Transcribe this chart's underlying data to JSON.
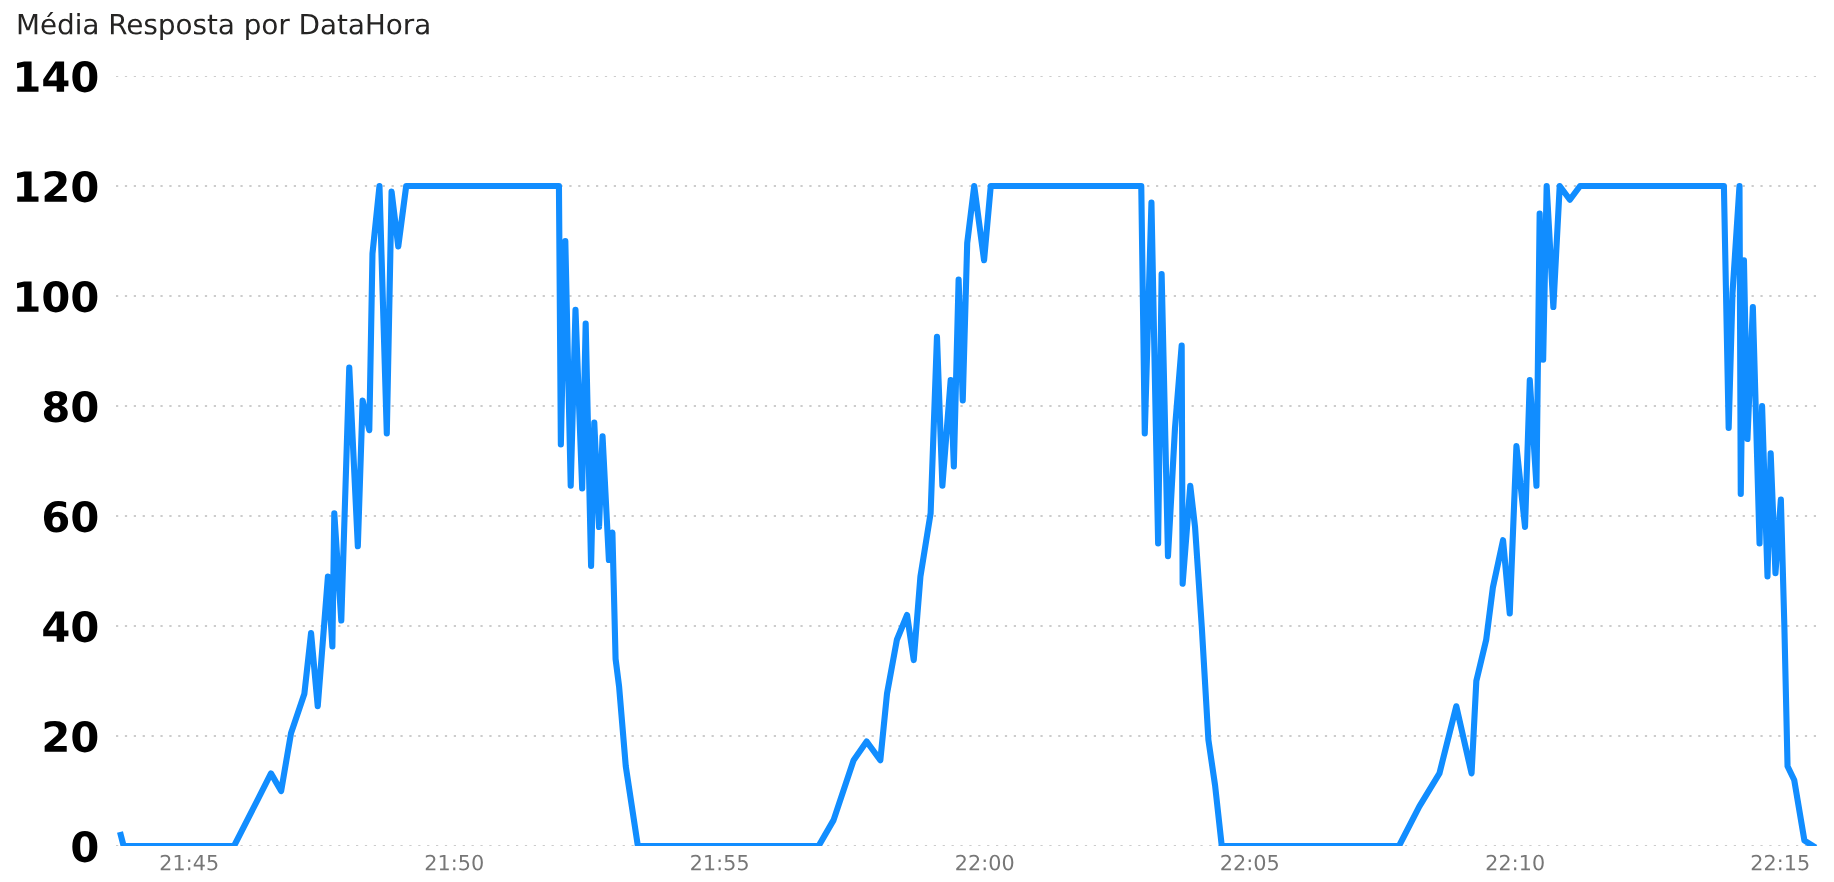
{
  "chart_data": {
    "type": "line",
    "title": "Média Resposta por DataHora",
    "x": [
      21.7285,
      21.7294,
      21.7641,
      21.7715,
      21.7757,
      21.7789,
      21.782,
      21.7862,
      21.7883,
      21.7904,
      21.7936,
      21.795,
      21.7956,
      21.7978,
      21.8003,
      21.803,
      21.8045,
      21.8066,
      21.8076,
      21.8098,
      21.8121,
      21.8136,
      21.8157,
      21.8182,
      21.8662,
      21.8668,
      21.8682,
      21.8699,
      21.8714,
      21.8735,
      21.8746,
      21.8763,
      21.8773,
      21.8788,
      21.8799,
      21.8819,
      21.883,
      21.884,
      21.8851,
      21.8872,
      21.891,
      21.9478,
      21.9525,
      21.9588,
      21.9629,
      21.9672,
      21.9693,
      21.9724,
      21.9756,
      21.9777,
      21.9798,
      21.983,
      21.985,
      21.9867,
      21.9893,
      21.9903,
      21.9918,
      21.9931,
      21.9945,
      21.9967,
      21.9998,
      22.0019,
      22.0492,
      22.0503,
      22.0524,
      22.0545,
      22.0556,
      22.0576,
      22.0598,
      22.0619,
      22.0622,
      22.0646,
      22.0661,
      22.0682,
      22.0703,
      22.0724,
      22.0745,
      22.1302,
      22.1366,
      22.1429,
      22.1482,
      22.153,
      22.1545,
      22.1576,
      22.1597,
      22.1629,
      22.165,
      22.1671,
      22.1698,
      22.1713,
      22.1734,
      22.1744,
      22.1755,
      22.1766,
      22.1787,
      22.1807,
      22.1839,
      22.1871,
      22.2323,
      22.2338,
      22.235,
      22.2372,
      22.2376,
      22.2386,
      22.2397,
      22.2414,
      22.2435,
      22.2443,
      22.246,
      22.247,
      22.2485,
      22.2502,
      22.2513,
      22.2523,
      22.2544,
      22.2576,
      22.2603
    ],
    "series": [
      {
        "color": "#118dff",
        "values": [
          2,
          0,
          0,
          8.4,
          13.2,
          10,
          20.5,
          27.7,
          38.7,
          25.4,
          49,
          36.3,
          60.5,
          41,
          87,
          54.5,
          81,
          75.6,
          107.7,
          120,
          75,
          119,
          109,
          120,
          120,
          73,
          110,
          65.5,
          97.5,
          65,
          95,
          50.9,
          77,
          58,
          74.5,
          52,
          57,
          34,
          29,
          14.5,
          0,
          0,
          4.7,
          15.6,
          19,
          15.6,
          27.7,
          37.5,
          42,
          33.8,
          49,
          60.5,
          92.6,
          65.5,
          84.7,
          69,
          103,
          81,
          109.6,
          120,
          106.5,
          120,
          120,
          75,
          117,
          55,
          104,
          52.7,
          76,
          91,
          47.7,
          65.5,
          58,
          40,
          19.3,
          11,
          0,
          0,
          7.2,
          13.2,
          25.4,
          13.2,
          30,
          37.5,
          47,
          55.6,
          42.3,
          72.7,
          58,
          84.7,
          65.5,
          115,
          88.4,
          120,
          98,
          120,
          117.5,
          120,
          120,
          76,
          100.5,
          120,
          64,
          106.5,
          74,
          98,
          55,
          80,
          49,
          71.4,
          49.6,
          63,
          40,
          14.5,
          12,
          1,
          0
        ]
      }
    ],
    "xlim": [
      21.727,
      22.2625
    ],
    "xticks": [
      {
        "value": 21.75,
        "label": "21:45"
      },
      {
        "value": 21.8333,
        "label": "21:50"
      },
      {
        "value": 21.9167,
        "label": "21:55"
      },
      {
        "value": 22.0,
        "label": "22:00"
      },
      {
        "value": 22.0833,
        "label": "22:05"
      },
      {
        "value": 22.1667,
        "label": "22:10"
      },
      {
        "value": 22.25,
        "label": "22:15"
      }
    ],
    "ylim": [
      0,
      140
    ],
    "yticks": [
      0,
      20,
      40,
      60,
      80,
      100,
      120,
      140
    ],
    "grid": "y",
    "legend": false
  }
}
